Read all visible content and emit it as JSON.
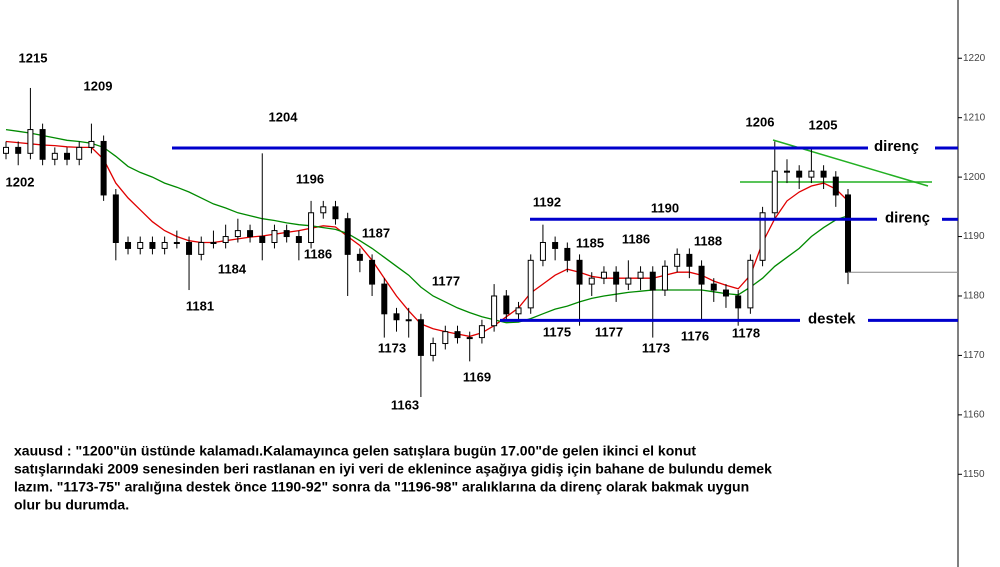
{
  "chart_data": {
    "type": "candlestick",
    "open": [
      1204,
      1205,
      1204,
      1208,
      1203,
      1204,
      1203,
      1205,
      1206,
      1197,
      1189,
      1188,
      1189,
      1188,
      1189,
      1189,
      1187,
      1189,
      1189,
      1190,
      1191,
      1190,
      1189,
      1191,
      1190,
      1189,
      1194,
      1195,
      1193,
      1187,
      1186,
      1182,
      1177,
      1176,
      1176,
      1170,
      1172,
      1174,
      1173,
      1173,
      1175,
      1180,
      1177,
      1178,
      1186,
      1189,
      1188,
      1186,
      1182,
      1183,
      1184,
      1182,
      1183,
      1184,
      1181,
      1185,
      1187,
      1185,
      1182,
      1181,
      1180,
      1178,
      1186,
      1194,
      1201,
      1201,
      1200,
      1201,
      1200,
      1197
    ],
    "high": [
      1206,
      1206,
      1215,
      1209,
      1205,
      1205,
      1206,
      1209,
      1207,
      1198,
      1190,
      1190,
      1190,
      1190,
      1191,
      1190,
      1190,
      1191,
      1192,
      1193,
      1192,
      1204,
      1192,
      1192,
      1191,
      1196,
      1196,
      1196,
      1194,
      1188,
      1187,
      1183,
      1178,
      1178,
      1177,
      1173,
      1175,
      1175,
      1174,
      1176,
      1182,
      1181,
      1179,
      1187,
      1192,
      1190,
      1189,
      1187,
      1184,
      1185,
      1185,
      1186,
      1185,
      1185,
      1186,
      1188,
      1188,
      1186,
      1183,
      1182,
      1181,
      1187,
      1195,
      1206,
      1203,
      1202,
      1205,
      1202,
      1201,
      1198
    ],
    "low": [
      1203,
      1202,
      1203,
      1202,
      1202,
      1202,
      1202,
      1204,
      1196,
      1186,
      1187,
      1187,
      1187,
      1187,
      1188,
      1181,
      1186,
      1188,
      1188,
      1189,
      1189,
      1186,
      1188,
      1189,
      1186,
      1188,
      1193,
      1192,
      1180,
      1184,
      1180,
      1173,
      1174,
      1173,
      1163,
      1169,
      1171,
      1172,
      1169,
      1172,
      1174,
      1176,
      1176,
      1177,
      1185,
      1186,
      1184,
      1175,
      1180,
      1182,
      1179,
      1181,
      1181,
      1173,
      1180,
      1184,
      1183,
      1176,
      1179,
      1178,
      1175,
      1177,
      1185,
      1193,
      1199,
      1198,
      1199,
      1198,
      1195,
      1182
    ],
    "close": [
      1205,
      1204,
      1208,
      1203,
      1204,
      1203,
      1205,
      1206,
      1197,
      1189,
      1188,
      1189,
      1188,
      1189,
      1189,
      1187,
      1189,
      1189,
      1190,
      1191,
      1190,
      1189,
      1191,
      1190,
      1189,
      1194,
      1195,
      1193,
      1187,
      1186,
      1182,
      1177,
      1176,
      1176,
      1170,
      1172,
      1174,
      1173,
      1173,
      1175,
      1180,
      1177,
      1178,
      1186,
      1189,
      1188,
      1186,
      1182,
      1183,
      1184,
      1182,
      1183,
      1184,
      1181,
      1185,
      1187,
      1185,
      1182,
      1181,
      1180,
      1178,
      1186,
      1194,
      1201,
      1201,
      1200,
      1201,
      1200,
      1197,
      1184
    ],
    "moving_averages": [
      {
        "color": "#e00000",
        "values": [
          1206,
          1205.8,
          1205.6,
          1205.4,
          1205.3,
          1205.1,
          1205,
          1205,
          1203,
          1199,
          1196.5,
          1194.5,
          1192.5,
          1191,
          1190,
          1189.3,
          1189,
          1189,
          1189.3,
          1189.6,
          1189.9,
          1190.1,
          1190.4,
          1190.7,
          1191,
          1191.4,
          1191.8,
          1191.6,
          1190,
          1188.5,
          1186,
          1183,
          1180,
          1177.5,
          1175.3,
          1174.5,
          1174,
          1173.6,
          1173.2,
          1173.8,
          1175,
          1176.5,
          1178,
          1180.5,
          1182,
          1183.5,
          1184.5,
          1184,
          1183.3,
          1183,
          1183,
          1183,
          1183,
          1183,
          1183.5,
          1184,
          1184,
          1183.5,
          1182.5,
          1181.8,
          1181.2,
          1183.5,
          1189,
          1193,
          1196,
          1197.5,
          1198.5,
          1199,
          1198,
          1196
        ]
      },
      {
        "color": "#008a00",
        "values": [
          1208,
          1207.7,
          1207.4,
          1207,
          1206.6,
          1206.2,
          1206,
          1205.7,
          1205,
          1203.5,
          1201.8,
          1200.8,
          1200,
          1199,
          1198.3,
          1197.5,
          1196.5,
          1195.5,
          1194.8,
          1194,
          1193.5,
          1193,
          1192.7,
          1192.3,
          1192,
          1191.8,
          1191.5,
          1191.2,
          1190.5,
          1189.3,
          1188,
          1186.5,
          1185,
          1183.5,
          1181.5,
          1180,
          1179,
          1178,
          1177.2,
          1176.5,
          1176,
          1175.5,
          1175.6,
          1176.2,
          1177,
          1177.8,
          1178.3,
          1179,
          1179.6,
          1180,
          1180.3,
          1180.6,
          1180.8,
          1181,
          1181,
          1181,
          1181,
          1181,
          1180.7,
          1180.4,
          1180.2,
          1181.5,
          1183,
          1185,
          1186.5,
          1188,
          1190,
          1191.5,
          1192.8,
          1193.5
        ]
      }
    ],
    "levels": [
      {
        "label": "direnç",
        "value": 1204.9,
        "color": "#0000cc"
      },
      {
        "label": "direnç",
        "value": 1192.9,
        "color": "#0000cc"
      },
      {
        "label": "destek",
        "value": 1175.9,
        "color": "#0000cc"
      }
    ],
    "price_labels": [
      "1215",
      "1202",
      "1209",
      "1204",
      "1181",
      "1184",
      "1196",
      "1186",
      "1187",
      "1177",
      "1173",
      "1163",
      "1169",
      "1192",
      "1175",
      "1185",
      "1177",
      "1186",
      "1173",
      "1190",
      "1188",
      "1176",
      "1178",
      "1206",
      "1205"
    ],
    "ylim": [
      1134.4,
      1229.8
    ],
    "yticks": [
      1150,
      1160,
      1170,
      1180,
      1190,
      1200,
      1210,
      1220
    ]
  },
  "commentary": [
    "xauusd : \"1200\"ün üstünde kalamadı.Kalamayınca gelen satışlara bugün 17.00\"de gelen ikinci el konut",
    "satışlarındaki 2009 senesinden beri rastlanan en iyi veri de eklenince aşağıya gidiş için bahane de bulundu demek",
    "lazım. \"1173-75\" aralığına destek önce 1190-92\" sonra da \"1196-98\" aralıklarına da direnç olarak bakmak uygun",
    "olur bu durumda."
  ]
}
